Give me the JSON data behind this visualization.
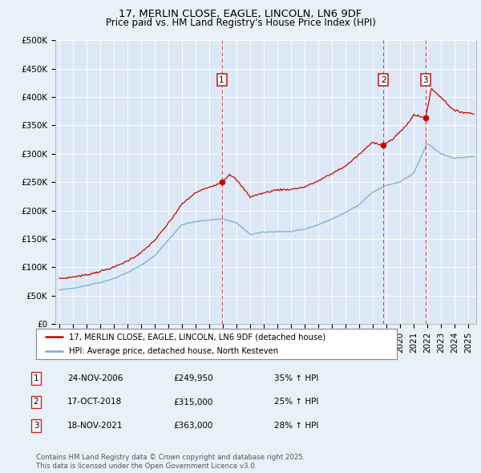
{
  "title": "17, MERLIN CLOSE, EAGLE, LINCOLN, LN6 9DF",
  "subtitle": "Price paid vs. HM Land Registry's House Price Index (HPI)",
  "bg_color": "#e8f0f8",
  "plot_bg_color": "#dce8f5",
  "grid_color": "#ffffff",
  "red_color": "#cc0000",
  "blue_color": "#7aadcf",
  "ylim": [
    0,
    500000
  ],
  "yticks": [
    0,
    50000,
    100000,
    150000,
    200000,
    250000,
    300000,
    350000,
    400000,
    450000,
    500000
  ],
  "ytick_labels": [
    "£0",
    "£50K",
    "£100K",
    "£150K",
    "£200K",
    "£250K",
    "£300K",
    "£350K",
    "£400K",
    "£450K",
    "£500K"
  ],
  "sale_dates_num": [
    2006.92,
    2018.79,
    2021.89
  ],
  "sale_labels": [
    "1",
    "2",
    "3"
  ],
  "sale_prices": [
    249950,
    315000,
    363000
  ],
  "sale_info": [
    [
      "1",
      "24-NOV-2006",
      "£249,950",
      "35% ↑ HPI"
    ],
    [
      "2",
      "17-OCT-2018",
      "£315,000",
      "25% ↑ HPI"
    ],
    [
      "3",
      "18-NOV-2021",
      "£363,000",
      "28% ↑ HPI"
    ]
  ],
  "legend_line1": "17, MERLIN CLOSE, EAGLE, LINCOLN, LN6 9DF (detached house)",
  "legend_line2": "HPI: Average price, detached house, North Kesteven",
  "footer": "Contains HM Land Registry data © Crown copyright and database right 2025.\nThis data is licensed under the Open Government Licence v3.0."
}
